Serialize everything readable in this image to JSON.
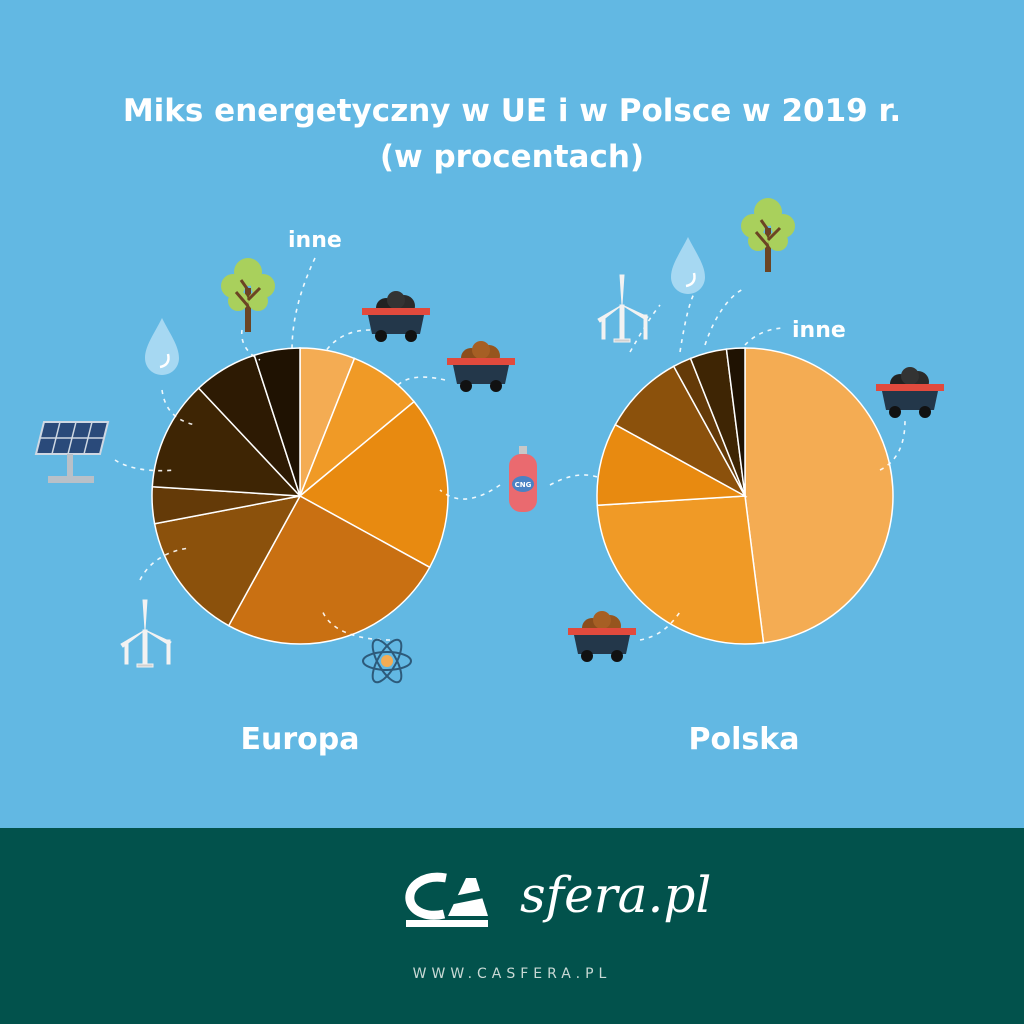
{
  "title_line1": "Miks energetyczny w UE i w Polsce w 2019 r.",
  "title_line2": "(w procentach)",
  "footer": {
    "url": "WWW.CASFERA.PL",
    "logo_text": "sfera.pl"
  },
  "colors": {
    "background": "#62b8e3",
    "footer": "#02524c",
    "slices": [
      "#f4ac53",
      "#f09a26",
      "#e88a10",
      "#c97012",
      "#8b510c",
      "#643a08",
      "#3e2504",
      "#2d1a03",
      "#1f1202"
    ]
  },
  "chart_data": [
    {
      "type": "pie",
      "label": "Europa",
      "slices": [
        {
          "name": "węgiel kamienny",
          "icon": "coal-cart-icon",
          "value": 6
        },
        {
          "name": "węgiel brunatny",
          "icon": "lignite-cart-icon",
          "value": 8
        },
        {
          "name": "gaz ziemny",
          "icon": "cng-tank-icon",
          "value": 19
        },
        {
          "name": "energia jądrowa",
          "icon": "atom-icon",
          "value": 25
        },
        {
          "name": "energia wiatrowa",
          "icon": "wind-turbine-icon",
          "value": 14
        },
        {
          "name": "energia słoneczna",
          "icon": "solar-panel-icon",
          "value": 4
        },
        {
          "name": "energia wodna",
          "icon": "water-drop-icon",
          "value": 12
        },
        {
          "name": "biomasa",
          "icon": "tree-icon",
          "value": 7
        },
        {
          "name": "inne",
          "value": 5
        }
      ]
    },
    {
      "type": "pie",
      "label": "Polska",
      "slices": [
        {
          "name": "węgiel kamienny",
          "icon": "coal-cart-icon",
          "value": 48
        },
        {
          "name": "węgiel brunatny",
          "icon": "lignite-cart-icon",
          "value": 26
        },
        {
          "name": "gaz ziemny",
          "icon": "cng-tank-icon",
          "value": 9
        },
        {
          "name": "energia wiatrowa",
          "icon": "wind-turbine-icon",
          "value": 9
        },
        {
          "name": "energia wodna",
          "icon": "water-drop-icon",
          "value": 2
        },
        {
          "name": "biomasa",
          "icon": "tree-icon",
          "value": 4
        },
        {
          "name": "inne",
          "value": 2
        }
      ]
    }
  ],
  "inne_label": "inne"
}
